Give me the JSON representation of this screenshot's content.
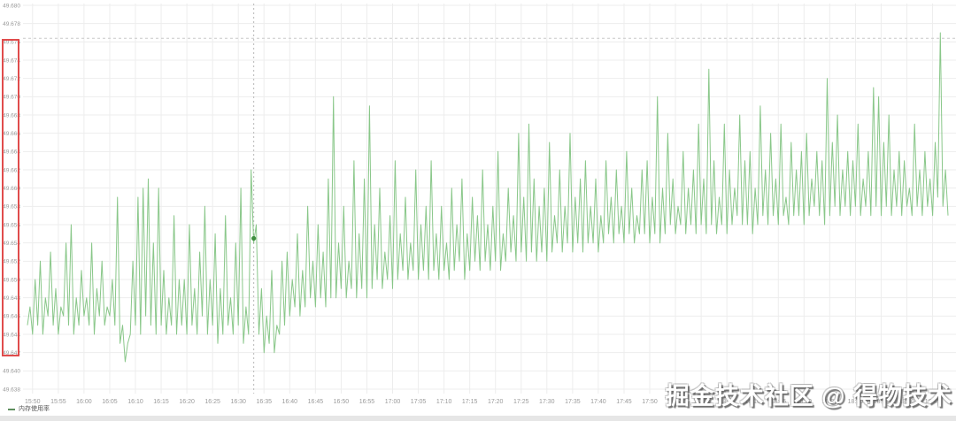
{
  "watermark": {
    "text": "掘金技术社区 @ 得物技术"
  },
  "legend": {
    "label": "内存使用率"
  },
  "colors": {
    "series": "#7cc17c",
    "series_point": "#3f8e3f",
    "grid": "#ededed",
    "axis_text": "#9a9a9a",
    "dashed_line": "#c9c9c9",
    "annotation_red": "#e04c4c",
    "background": "#ffffff"
  },
  "annotations": {
    "y_axis_highlight": {
      "from_label": "49.676",
      "to_label": "49.642",
      "color": "#e04c4c"
    }
  },
  "chart_data": {
    "type": "line",
    "title": "",
    "xlabel": "",
    "ylabel": "",
    "grid": true,
    "legend_position": "bottom-left",
    "ylim": [
      49.638,
      49.68
    ],
    "y_tick_step": 0.002,
    "x_start": "15:49",
    "x_end": "18:48",
    "sample_interval_seconds": 30,
    "max_reference_line": 49.6764,
    "crosshair_point": {
      "time": "16:33",
      "value": 49.6545
    },
    "x_tick_labels": [
      "15:50",
      "15:55",
      "16:00",
      "16:05",
      "16:10",
      "16:15",
      "16:20",
      "16:25",
      "16:30",
      "16:35",
      "16:40",
      "16:45",
      "16:50",
      "16:55",
      "17:00",
      "17:05",
      "17:10",
      "17:15",
      "17:20",
      "17:25",
      "17:30",
      "17:35",
      "17:40",
      "17:45",
      "17:50",
      "17:55",
      "18:00",
      "18:05",
      "18:10",
      "18:15",
      "18:20",
      "18:25",
      "18:30",
      "18:35",
      "18:40",
      "18:45"
    ],
    "y_tick_labels": [
      "49.680",
      "49.678",
      "49.676",
      "49.674",
      "49.672",
      "49.670",
      "49.668",
      "49.666",
      "49.664",
      "49.662",
      "49.660",
      "49.658",
      "49.656",
      "49.654",
      "49.652",
      "49.650",
      "49.648",
      "49.646",
      "49.644",
      "49.642",
      "49.640",
      "49.638"
    ],
    "series": [
      {
        "name": "内存使用率",
        "color": "#7cc17c",
        "values": [
          49.645,
          49.647,
          49.644,
          49.65,
          49.645,
          49.652,
          49.644,
          49.648,
          49.646,
          49.653,
          49.645,
          49.649,
          49.644,
          49.647,
          49.646,
          49.654,
          49.645,
          49.656,
          49.644,
          49.648,
          49.645,
          49.651,
          49.646,
          49.648,
          49.645,
          49.654,
          49.644,
          49.649,
          49.646,
          49.652,
          49.645,
          49.647,
          49.646,
          49.65,
          49.645,
          49.659,
          49.643,
          49.645,
          49.641,
          49.643,
          49.644,
          49.652,
          49.645,
          49.659,
          49.644,
          49.66,
          49.646,
          49.661,
          49.645,
          49.654,
          49.644,
          49.66,
          49.645,
          49.651,
          49.644,
          49.648,
          49.645,
          49.657,
          49.644,
          49.65,
          49.645,
          49.65,
          49.644,
          49.656,
          49.645,
          49.649,
          49.644,
          49.653,
          49.646,
          49.658,
          49.644,
          49.65,
          49.645,
          49.655,
          49.643,
          49.649,
          49.644,
          49.657,
          49.645,
          49.648,
          49.644,
          49.654,
          49.645,
          49.66,
          49.643,
          49.647,
          49.644,
          49.662,
          49.654,
          49.656,
          49.644,
          49.649,
          49.642,
          49.646,
          49.643,
          49.651,
          49.642,
          49.645,
          49.644,
          49.652,
          49.645,
          49.653,
          49.646,
          49.65,
          49.647,
          49.655,
          49.646,
          49.651,
          49.647,
          49.658,
          49.648,
          49.652,
          49.647,
          49.656,
          49.648,
          49.653,
          49.647,
          49.661,
          49.648,
          49.67,
          49.648,
          49.654,
          49.649,
          49.658,
          49.648,
          49.652,
          49.649,
          49.663,
          49.648,
          49.655,
          49.649,
          49.661,
          49.648,
          49.669,
          49.649,
          49.656,
          49.65,
          49.66,
          49.649,
          49.653,
          49.65,
          49.657,
          49.649,
          49.663,
          49.65,
          49.655,
          49.651,
          49.659,
          49.65,
          49.654,
          49.651,
          49.662,
          49.65,
          49.656,
          49.651,
          49.658,
          49.65,
          49.663,
          49.651,
          49.655,
          49.65,
          49.658,
          49.651,
          49.654,
          49.65,
          49.66,
          49.651,
          49.656,
          49.652,
          49.661,
          49.65,
          49.655,
          49.651,
          49.659,
          49.652,
          49.657,
          49.651,
          49.662,
          49.652,
          49.656,
          49.651,
          49.658,
          49.652,
          49.664,
          49.651,
          49.655,
          49.652,
          49.66,
          49.653,
          49.657,
          49.652,
          49.666,
          49.653,
          49.659,
          49.652,
          49.667,
          49.653,
          49.661,
          49.652,
          49.658,
          49.653,
          49.66,
          49.652,
          49.665,
          49.653,
          49.657,
          49.654,
          49.662,
          49.653,
          49.658,
          49.654,
          49.666,
          49.653,
          49.659,
          49.654,
          49.661,
          49.653,
          49.663,
          49.654,
          49.658,
          49.654,
          49.661,
          49.653,
          49.657,
          49.654,
          49.663,
          49.655,
          49.659,
          49.654,
          49.662,
          49.655,
          49.658,
          49.654,
          49.664,
          49.655,
          49.66,
          49.654,
          49.657,
          49.655,
          49.662,
          49.655,
          49.663,
          49.654,
          49.659,
          49.655,
          49.67,
          49.654,
          49.66,
          49.655,
          49.666,
          49.656,
          49.661,
          49.655,
          49.658,
          49.656,
          49.664,
          49.655,
          49.66,
          49.656,
          49.662,
          49.655,
          49.667,
          49.656,
          49.661,
          49.655,
          49.673,
          49.656,
          49.663,
          49.655,
          49.659,
          49.656,
          49.667,
          49.655,
          49.662,
          49.656,
          49.66,
          49.657,
          49.668,
          49.656,
          49.663,
          49.656,
          49.664,
          49.655,
          49.66,
          49.656,
          49.669,
          49.657,
          49.662,
          49.656,
          49.666,
          49.657,
          49.661,
          49.656,
          49.667,
          49.657,
          49.659,
          49.656,
          49.665,
          49.657,
          49.662,
          49.657,
          49.664,
          49.656,
          49.666,
          49.657,
          49.661,
          49.658,
          49.664,
          49.657,
          49.663,
          49.656,
          49.672,
          49.657,
          49.665,
          49.658,
          49.668,
          49.657,
          49.662,
          49.658,
          49.664,
          49.657,
          49.663,
          49.658,
          49.667,
          49.657,
          49.661,
          49.658,
          49.664,
          49.657,
          49.671,
          49.658,
          49.67,
          49.657,
          49.665,
          49.658,
          49.668,
          49.657,
          49.662,
          49.658,
          49.664,
          49.657,
          49.663,
          49.658,
          49.66,
          49.657,
          49.667,
          49.658,
          49.662,
          49.657,
          49.664,
          49.658,
          49.661,
          49.657,
          49.665,
          49.659,
          49.677,
          49.658,
          49.662,
          49.657
        ]
      }
    ]
  }
}
